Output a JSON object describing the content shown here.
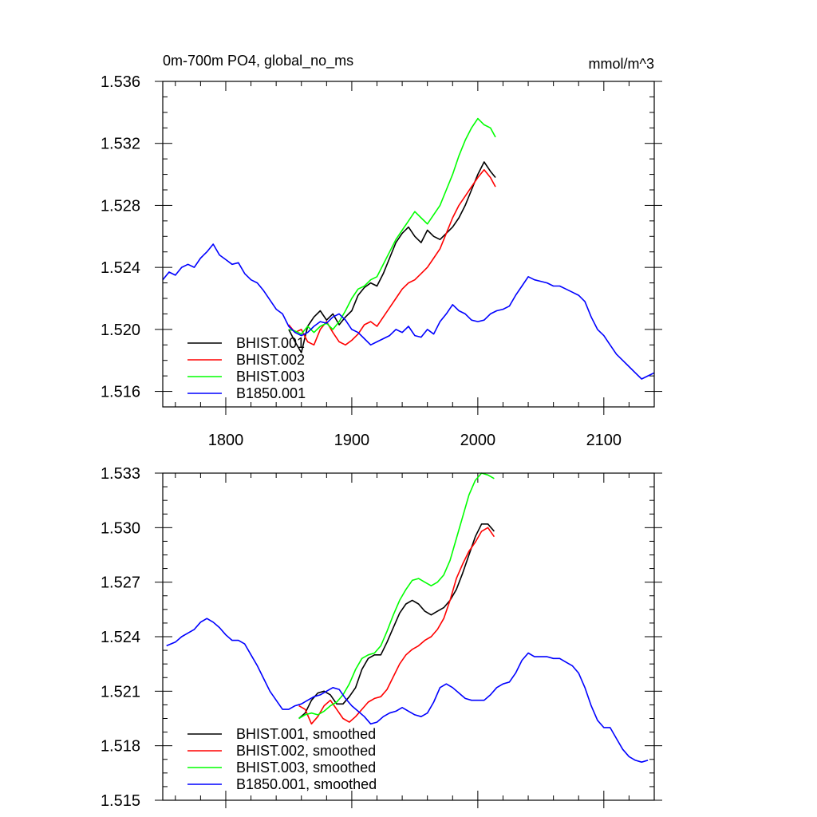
{
  "chart_data": [
    {
      "type": "line",
      "title": "0m-700m PO4, global_no_ms",
      "units": "mmol/m^3",
      "xlim": [
        1750,
        2140
      ],
      "ylim": [
        1.515,
        1.536
      ],
      "yticks": [
        "1.516",
        "1.520",
        "1.524",
        "1.528",
        "1.532",
        "1.536"
      ],
      "xticks": [
        "1800",
        "1900",
        "2000",
        "2100"
      ],
      "series": [
        {
          "name": "BHIST.001",
          "color": "#000000",
          "x": [
            1850,
            1855,
            1860,
            1865,
            1870,
            1875,
            1880,
            1885,
            1890,
            1895,
            1900,
            1905,
            1910,
            1915,
            1920,
            1925,
            1930,
            1935,
            1940,
            1945,
            1950,
            1955,
            1960,
            1965,
            1970,
            1975,
            1980,
            1985,
            1990,
            1995,
            2000,
            2005,
            2010,
            2014
          ],
          "y": [
            1.52,
            1.5192,
            1.5185,
            1.5202,
            1.5208,
            1.5212,
            1.5206,
            1.521,
            1.5203,
            1.5208,
            1.5212,
            1.5222,
            1.5227,
            1.523,
            1.5228,
            1.5236,
            1.5246,
            1.5256,
            1.5262,
            1.5266,
            1.526,
            1.5256,
            1.5264,
            1.526,
            1.5258,
            1.5262,
            1.5266,
            1.5272,
            1.528,
            1.529,
            1.53,
            1.5308,
            1.5302,
            1.5298
          ]
        },
        {
          "name": "BHIST.002",
          "color": "#ff0000",
          "x": [
            1850,
            1855,
            1860,
            1865,
            1870,
            1875,
            1880,
            1885,
            1890,
            1895,
            1900,
            1905,
            1910,
            1915,
            1920,
            1925,
            1930,
            1935,
            1940,
            1945,
            1950,
            1955,
            1960,
            1965,
            1970,
            1975,
            1980,
            1985,
            1990,
            1995,
            2000,
            2005,
            2010,
            2014
          ],
          "y": [
            1.5203,
            1.5198,
            1.52,
            1.5192,
            1.519,
            1.52,
            1.5205,
            1.5198,
            1.5192,
            1.519,
            1.5193,
            1.5197,
            1.5203,
            1.5205,
            1.5202,
            1.5208,
            1.5214,
            1.522,
            1.5226,
            1.523,
            1.5232,
            1.5236,
            1.524,
            1.5246,
            1.5252,
            1.5262,
            1.5272,
            1.528,
            1.5286,
            1.5292,
            1.5298,
            1.5303,
            1.5298,
            1.5292
          ]
        },
        {
          "name": "BHIST.003",
          "color": "#00ff00",
          "x": [
            1850,
            1855,
            1860,
            1865,
            1870,
            1875,
            1880,
            1885,
            1890,
            1895,
            1900,
            1905,
            1910,
            1915,
            1920,
            1925,
            1930,
            1935,
            1940,
            1945,
            1950,
            1955,
            1960,
            1965,
            1970,
            1975,
            1980,
            1985,
            1990,
            1995,
            2000,
            2005,
            2010,
            2014
          ],
          "y": [
            1.52,
            1.5199,
            1.5197,
            1.5202,
            1.5198,
            1.5202,
            1.5204,
            1.52,
            1.5205,
            1.5212,
            1.522,
            1.5226,
            1.5228,
            1.5232,
            1.5234,
            1.5242,
            1.525,
            1.5258,
            1.5264,
            1.527,
            1.5276,
            1.5272,
            1.5268,
            1.5274,
            1.528,
            1.529,
            1.53,
            1.5312,
            1.5322,
            1.533,
            1.5336,
            1.5332,
            1.533,
            1.5324
          ]
        },
        {
          "name": "B1850.001",
          "color": "#0000ff",
          "x": [
            1750,
            1755,
            1760,
            1765,
            1770,
            1775,
            1780,
            1785,
            1790,
            1795,
            1800,
            1805,
            1810,
            1815,
            1820,
            1825,
            1830,
            1835,
            1840,
            1845,
            1850,
            1855,
            1860,
            1865,
            1870,
            1875,
            1880,
            1885,
            1890,
            1895,
            1900,
            1905,
            1910,
            1915,
            1920,
            1925,
            1930,
            1935,
            1940,
            1945,
            1950,
            1955,
            1960,
            1965,
            1970,
            1975,
            1980,
            1985,
            1990,
            1995,
            2000,
            2005,
            2010,
            2015,
            2020,
            2025,
            2030,
            2035,
            2040,
            2045,
            2050,
            2055,
            2060,
            2065,
            2070,
            2075,
            2080,
            2085,
            2090,
            2095,
            2100,
            2105,
            2110,
            2115,
            2120,
            2125,
            2130,
            2135,
            2140
          ],
          "y": [
            1.5232,
            1.5237,
            1.5235,
            1.524,
            1.5242,
            1.524,
            1.5246,
            1.525,
            1.5255,
            1.5248,
            1.5245,
            1.5242,
            1.5243,
            1.5236,
            1.5232,
            1.523,
            1.5225,
            1.5219,
            1.5213,
            1.521,
            1.5202,
            1.5198,
            1.5196,
            1.5198,
            1.5202,
            1.5205,
            1.5204,
            1.5208,
            1.521,
            1.5206,
            1.52,
            1.5198,
            1.5194,
            1.519,
            1.5192,
            1.5194,
            1.5196,
            1.52,
            1.5198,
            1.5202,
            1.5196,
            1.5195,
            1.52,
            1.5197,
            1.5205,
            1.521,
            1.5216,
            1.5212,
            1.521,
            1.5206,
            1.5205,
            1.5206,
            1.521,
            1.5212,
            1.5213,
            1.5215,
            1.5222,
            1.5228,
            1.5234,
            1.5232,
            1.5231,
            1.523,
            1.5228,
            1.5228,
            1.5226,
            1.5224,
            1.5222,
            1.5218,
            1.5208,
            1.52,
            1.5196,
            1.519,
            1.5184,
            1.518,
            1.5176,
            1.5172,
            1.5168,
            1.517,
            1.5172
          ]
        }
      ]
    },
    {
      "type": "line",
      "xlim": [
        1750,
        2140
      ],
      "ylim": [
        1.515,
        1.533
      ],
      "yticks": [
        "1.515",
        "1.518",
        "1.521",
        "1.524",
        "1.527",
        "1.530",
        "1.533"
      ],
      "series": [
        {
          "name": "BHIST.001, smoothed",
          "color": "#000000",
          "x": [
            1858,
            1863,
            1868,
            1873,
            1878,
            1883,
            1888,
            1893,
            1898,
            1903,
            1908,
            1913,
            1918,
            1923,
            1928,
            1933,
            1938,
            1943,
            1948,
            1953,
            1958,
            1963,
            1968,
            1973,
            1978,
            1983,
            1988,
            1993,
            1998,
            2003,
            2008,
            2013
          ],
          "y": [
            1.5195,
            1.5198,
            1.5205,
            1.5209,
            1.521,
            1.5208,
            1.5203,
            1.5203,
            1.5207,
            1.5212,
            1.5222,
            1.5228,
            1.523,
            1.523,
            1.5237,
            1.5245,
            1.5253,
            1.5258,
            1.526,
            1.5258,
            1.5254,
            1.5252,
            1.5254,
            1.5256,
            1.526,
            1.5266,
            1.5275,
            1.5285,
            1.5295,
            1.5302,
            1.5302,
            1.5298
          ]
        },
        {
          "name": "BHIST.002, smoothed",
          "color": "#ff0000",
          "x": [
            1858,
            1863,
            1868,
            1873,
            1878,
            1883,
            1888,
            1893,
            1898,
            1903,
            1908,
            1913,
            1918,
            1923,
            1928,
            1933,
            1938,
            1943,
            1948,
            1953,
            1958,
            1963,
            1968,
            1973,
            1978,
            1983,
            1988,
            1993,
            1998,
            2003,
            2008,
            2013
          ],
          "y": [
            1.5202,
            1.52,
            1.5192,
            1.5196,
            1.5202,
            1.5205,
            1.52,
            1.5195,
            1.5193,
            1.5196,
            1.52,
            1.5204,
            1.5206,
            1.5207,
            1.5211,
            1.5218,
            1.5225,
            1.523,
            1.5233,
            1.5235,
            1.5238,
            1.524,
            1.5244,
            1.525,
            1.526,
            1.5272,
            1.528,
            1.5287,
            1.5292,
            1.5298,
            1.53,
            1.5295
          ]
        },
        {
          "name": "BHIST.003, smoothed",
          "color": "#00ff00",
          "x": [
            1858,
            1863,
            1868,
            1873,
            1878,
            1883,
            1888,
            1893,
            1898,
            1903,
            1908,
            1913,
            1918,
            1923,
            1928,
            1933,
            1938,
            1943,
            1948,
            1953,
            1958,
            1963,
            1968,
            1973,
            1978,
            1983,
            1988,
            1993,
            1998,
            2003,
            2008,
            2013
          ],
          "y": [
            1.5195,
            1.5197,
            1.5198,
            1.5197,
            1.5199,
            1.5202,
            1.5204,
            1.5208,
            1.5214,
            1.5222,
            1.5228,
            1.523,
            1.5231,
            1.5235,
            1.5243,
            1.5252,
            1.526,
            1.5266,
            1.5271,
            1.5272,
            1.527,
            1.5268,
            1.527,
            1.5274,
            1.5282,
            1.5294,
            1.5306,
            1.5318,
            1.5326,
            1.533,
            1.5329,
            1.5327
          ]
        },
        {
          "name": "B1850.001, smoothed",
          "color": "#0000ff",
          "x": [
            1753,
            1760,
            1765,
            1770,
            1775,
            1780,
            1785,
            1790,
            1795,
            1800,
            1805,
            1810,
            1815,
            1820,
            1825,
            1830,
            1835,
            1840,
            1845,
            1850,
            1855,
            1860,
            1865,
            1870,
            1875,
            1880,
            1885,
            1890,
            1895,
            1900,
            1905,
            1910,
            1915,
            1920,
            1925,
            1930,
            1935,
            1940,
            1945,
            1950,
            1955,
            1960,
            1965,
            1970,
            1975,
            1980,
            1985,
            1990,
            1995,
            2000,
            2005,
            2010,
            2015,
            2020,
            2025,
            2030,
            2035,
            2040,
            2045,
            2050,
            2055,
            2060,
            2065,
            2070,
            2075,
            2080,
            2085,
            2090,
            2095,
            2100,
            2105,
            2110,
            2115,
            2120,
            2125,
            2130,
            2135
          ],
          "y": [
            1.5235,
            1.5237,
            1.524,
            1.5242,
            1.5244,
            1.5248,
            1.525,
            1.5248,
            1.5245,
            1.5241,
            1.5238,
            1.5238,
            1.5236,
            1.523,
            1.5224,
            1.5217,
            1.521,
            1.5205,
            1.52,
            1.52,
            1.5202,
            1.5203,
            1.5205,
            1.5207,
            1.5208,
            1.521,
            1.5212,
            1.5211,
            1.5206,
            1.5202,
            1.5199,
            1.5196,
            1.5192,
            1.5193,
            1.5196,
            1.5198,
            1.5199,
            1.5201,
            1.5199,
            1.5197,
            1.5196,
            1.5198,
            1.5204,
            1.5212,
            1.5214,
            1.5212,
            1.5209,
            1.5206,
            1.5205,
            1.5205,
            1.5205,
            1.5208,
            1.5212,
            1.5214,
            1.5215,
            1.522,
            1.5227,
            1.5231,
            1.5229,
            1.5229,
            1.5229,
            1.5228,
            1.5228,
            1.5226,
            1.5224,
            1.522,
            1.5212,
            1.5202,
            1.5194,
            1.519,
            1.519,
            1.5184,
            1.5178,
            1.5174,
            1.5172,
            1.5171,
            1.5172
          ]
        }
      ]
    }
  ]
}
